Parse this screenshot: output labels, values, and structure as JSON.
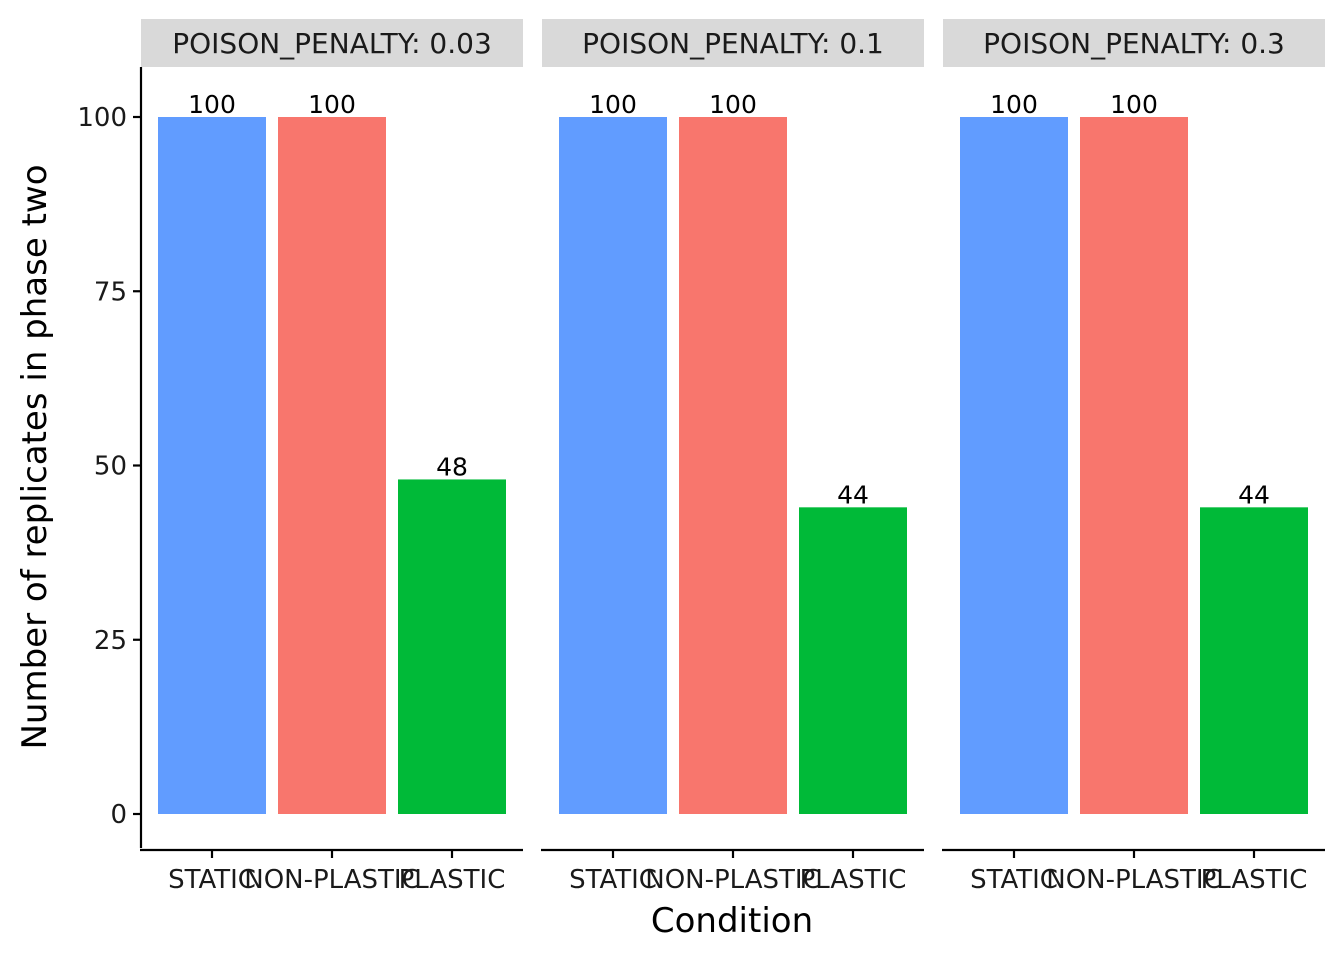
{
  "chart_data": {
    "type": "bar",
    "xlabel": "Condition",
    "ylabel": "Number of replicates in phase two",
    "ylim": [
      0,
      100
    ],
    "yticks": [
      0,
      25,
      50,
      75,
      100
    ],
    "categories": [
      "STATIC",
      "NON-PLASTIC",
      "PLASTIC"
    ],
    "category_colors": [
      "#619CFF",
      "#F8766D",
      "#00BA38"
    ],
    "grid": false,
    "legend": "none",
    "panels": [
      {
        "title": "POISON_PENALTY: 0.03",
        "values": [
          100,
          100,
          48
        ]
      },
      {
        "title": "POISON_PENALTY: 0.1",
        "values": [
          100,
          100,
          44
        ]
      },
      {
        "title": "POISON_PENALTY: 0.3",
        "values": [
          100,
          100,
          44
        ]
      }
    ]
  }
}
